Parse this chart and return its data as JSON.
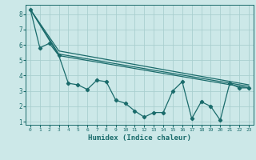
{
  "title": "",
  "xlabel": "Humidex (Indice chaleur)",
  "bg_color": "#cce8e8",
  "grid_color": "#aacfcf",
  "line_color": "#1a6b6b",
  "xlim": [
    -0.5,
    23.5
  ],
  "ylim": [
    0.8,
    8.6
  ],
  "yticks": [
    1,
    2,
    3,
    4,
    5,
    6,
    7,
    8
  ],
  "xticks": [
    0,
    1,
    2,
    3,
    4,
    5,
    6,
    7,
    8,
    9,
    10,
    11,
    12,
    13,
    14,
    15,
    16,
    17,
    18,
    19,
    20,
    21,
    22,
    23
  ],
  "series0": {
    "x": [
      0,
      1,
      2,
      3,
      4,
      5,
      6,
      7,
      8,
      9,
      10,
      11,
      12,
      13,
      14,
      15,
      16,
      17,
      18,
      19,
      20,
      21,
      22,
      23
    ],
    "y": [
      8.3,
      5.8,
      6.1,
      5.3,
      3.5,
      3.4,
      3.1,
      3.7,
      3.6,
      2.4,
      2.2,
      1.7,
      1.3,
      1.6,
      1.6,
      3.0,
      3.6,
      1.2,
      2.3,
      2.0,
      1.1,
      3.5,
      3.2,
      3.2
    ]
  },
  "line1": {
    "x": [
      0,
      3,
      23
    ],
    "y": [
      8.3,
      5.3,
      3.2
    ]
  },
  "line2": {
    "x": [
      0,
      3,
      23
    ],
    "y": [
      8.3,
      5.4,
      3.3
    ]
  },
  "line3": {
    "x": [
      0,
      3,
      23
    ],
    "y": [
      8.3,
      5.6,
      3.4
    ]
  }
}
